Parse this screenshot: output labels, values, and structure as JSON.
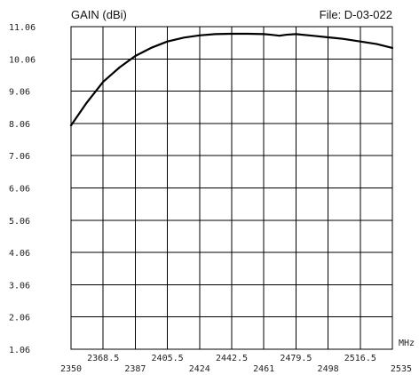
{
  "chart_data": {
    "type": "line",
    "title": "GAIN (dBi)",
    "file_label": "File:  D-03-022",
    "xlabel": "MHz",
    "ylabel": "",
    "xlim": [
      2350,
      2535
    ],
    "ylim": [
      1.06,
      11.06
    ],
    "grid": true,
    "y_ticks": [
      "11.06",
      "10.06",
      "9.06",
      "8.06",
      "7.06",
      "6.06",
      "5.06",
      "4.06",
      "3.06",
      "2.06",
      "1.06"
    ],
    "x_ticks_upper": [
      "2368.5",
      "2405.5",
      "2442.5",
      "2479.5",
      "2516.5"
    ],
    "x_ticks_lower": [
      "2350",
      "2387",
      "2424",
      "2461",
      "2498",
      "2535"
    ],
    "series": [
      {
        "x": [
          2350,
          2359,
          2368.5,
          2378,
          2387,
          2396,
          2405.5,
          2415,
          2424,
          2433,
          2442.5,
          2452,
          2461,
          2465,
          2470,
          2474,
          2479.5,
          2489,
          2498,
          2507,
          2516.5,
          2526,
          2535
        ],
        "y": [
          8.0,
          8.7,
          9.35,
          9.8,
          10.15,
          10.4,
          10.6,
          10.72,
          10.79,
          10.83,
          10.84,
          10.84,
          10.83,
          10.81,
          10.78,
          10.81,
          10.83,
          10.78,
          10.73,
          10.68,
          10.6,
          10.52,
          10.4
        ]
      }
    ]
  }
}
